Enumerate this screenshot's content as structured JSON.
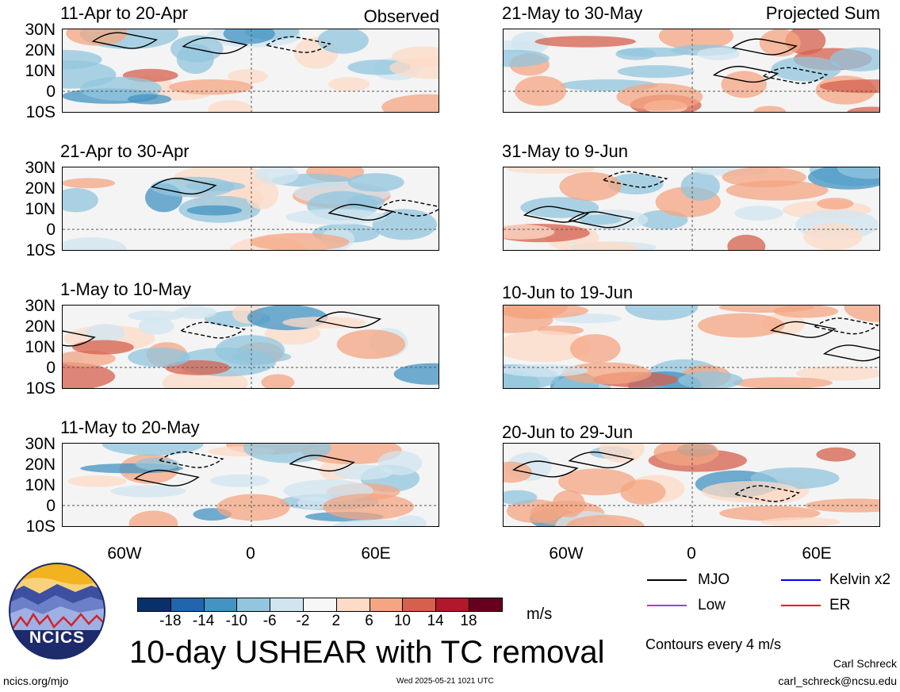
{
  "panels_left": [
    {
      "title": "11-Apr to 20-Apr",
      "tag": "Observed"
    },
    {
      "title": "21-Apr to 30-Apr",
      "tag": ""
    },
    {
      "title": "1-May to 10-May",
      "tag": ""
    },
    {
      "title": "11-May to 20-May",
      "tag": ""
    }
  ],
  "panels_right": [
    {
      "title": "21-May to 30-May",
      "tag": "Projected Sum"
    },
    {
      "title": "31-May to 9-Jun",
      "tag": ""
    },
    {
      "title": "10-Jun to 19-Jun",
      "tag": ""
    },
    {
      "title": "20-Jun to 29-Jun",
      "tag": ""
    }
  ],
  "lat_labels": [
    "30N",
    "20N",
    "10N",
    "0",
    "10S"
  ],
  "lon_labels": [
    "60W",
    "0",
    "60E"
  ],
  "colorbar": {
    "ticks": [
      "-18",
      "-14",
      "-10",
      "-6",
      "-2",
      "2",
      "6",
      "10",
      "14",
      "18"
    ],
    "colors": [
      "#08306b",
      "#2166ac",
      "#4393c3",
      "#92c5de",
      "#d1e5f0",
      "#f7f7f7",
      "#fddbc7",
      "#f4a582",
      "#d6604d",
      "#b2182b",
      "#67001f"
    ],
    "units": "m/s"
  },
  "main_title": "10-day USHEAR with TC removal",
  "legend": {
    "items": [
      {
        "label": "MJO",
        "color": "#000000"
      },
      {
        "label": "Kelvin x2",
        "color": "#0000ff"
      },
      {
        "label": "Low",
        "color": "#a040e0"
      },
      {
        "label": "ER",
        "color": "#ff0000"
      }
    ],
    "contours_note": "Contours every 4 m/s"
  },
  "logo": {
    "text": "NCICS"
  },
  "footer": {
    "url": "ncics.org/mjo",
    "timestamp": "Wed 2025-05-21 1021 UTC",
    "author": "Carl Schreck",
    "email": "carl_schreck@ncsu.edu"
  }
}
